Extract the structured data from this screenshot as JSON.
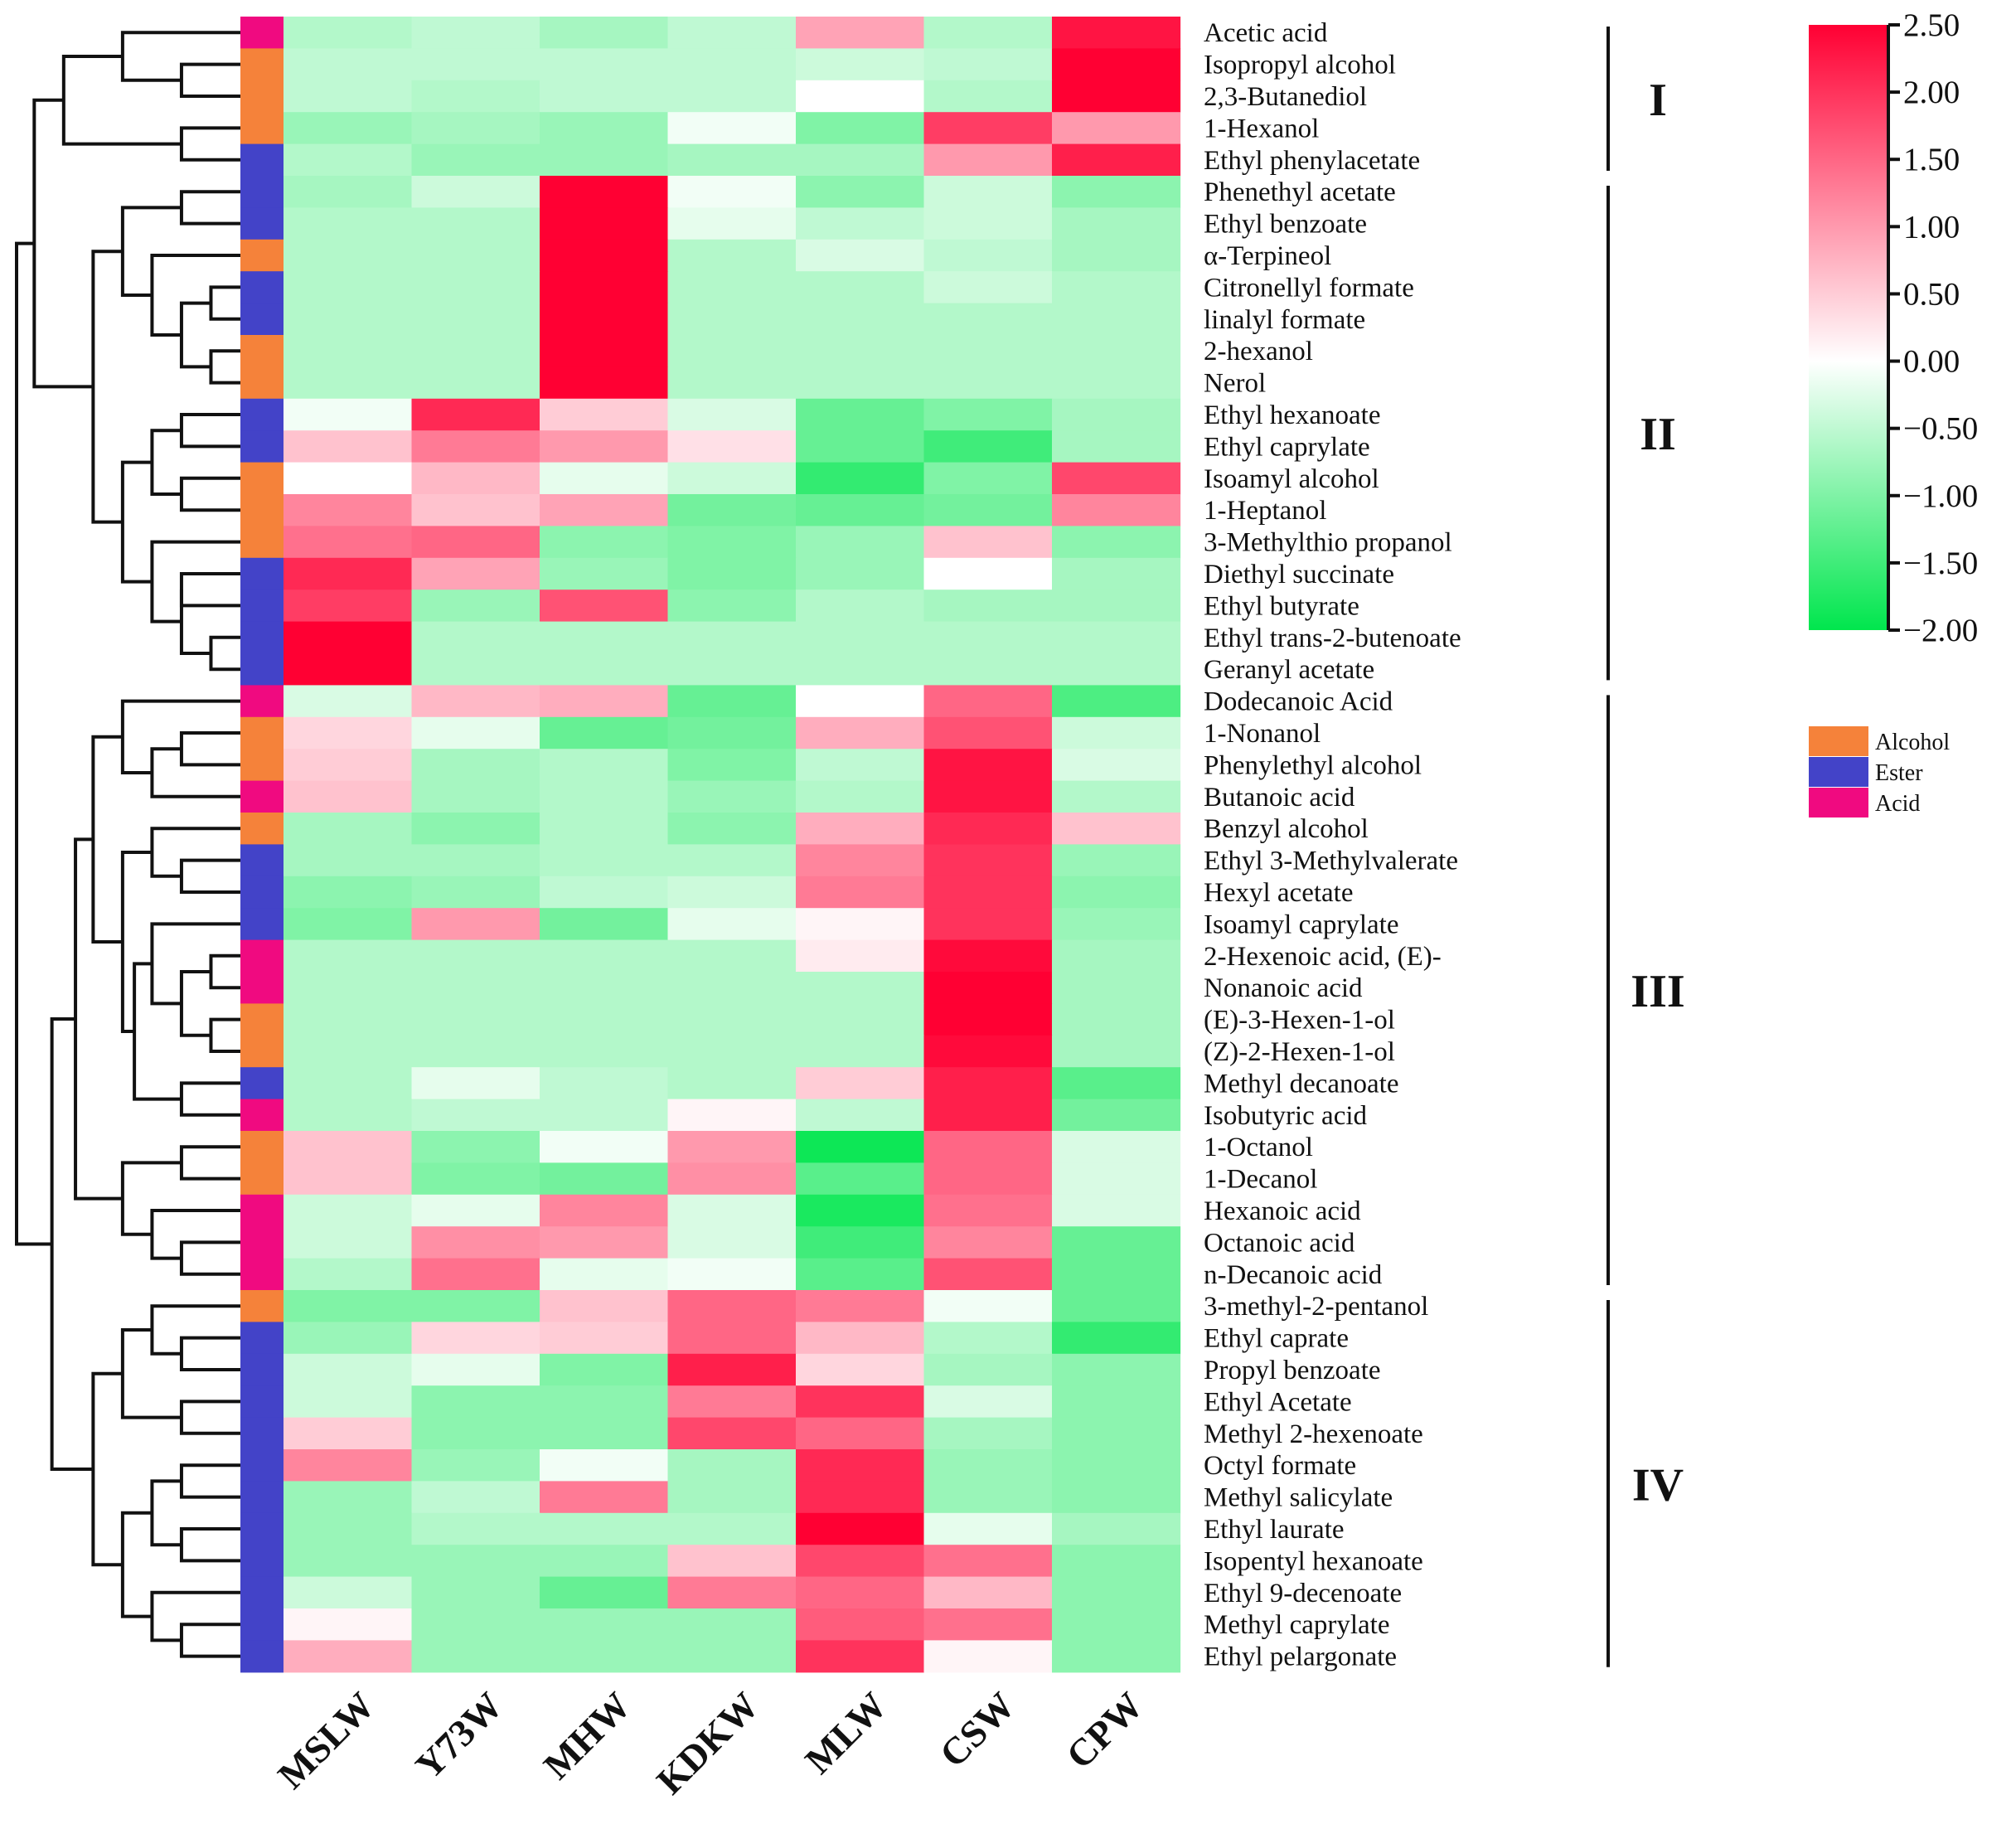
{
  "chart_data": {
    "type": "heatmap",
    "title": "",
    "columns": [
      "MSLW",
      "Y73W",
      "MHW",
      "KDKW",
      "MLW",
      "CSW",
      "CPW"
    ],
    "rows": [
      "Acetic acid",
      "Isopropyl alcohol",
      "2,3-Butanediol",
      "1-Hexanol",
      "Ethyl phenylacetate",
      "Phenethyl acetate",
      "Ethyl benzoate",
      "α-Terpineol",
      "Citronellyl formate",
      "linalyl formate",
      "2-hexanol",
      "Nerol",
      "Ethyl hexanoate",
      "Ethyl caprylate",
      "Isoamyl alcohol",
      "1-Heptanol",
      "3-Methylthio propanol",
      "Diethyl succinate",
      "Ethyl butyrate",
      "Ethyl trans-2-butenoate",
      "Geranyl acetate",
      "Dodecanoic Acid",
      "1-Nonanol",
      "Phenylethyl alcohol",
      "Butanoic acid",
      "Benzyl alcohol",
      "Ethyl 3-Methylvalerate",
      "Hexyl acetate",
      "Isoamyl caprylate",
      "2-Hexenoic acid, (E)-",
      "Nonanoic acid",
      "(E)-3-Hexen-1-ol",
      "(Z)-2-Hexen-1-ol",
      "Methyl decanoate",
      "Isobutyric acid",
      "1-Octanol",
      "1-Decanol",
      "Hexanoic acid",
      "Octanoic acid",
      "n-Decanoic acid",
      "3-methyl-2-pentanol",
      "Ethyl caprate",
      "Propyl benzoate",
      "Ethyl Acetate",
      "Methyl 2-hexenoate",
      "Octyl formate",
      "Methyl salicylate",
      "Ethyl laurate",
      "Isopentyl hexanoate",
      "Ethyl 9-decenoate",
      "Methyl caprylate",
      "Ethyl pelargonate"
    ],
    "row_class": [
      "Acid",
      "Alcohol",
      "Alcohol",
      "Alcohol",
      "Ester",
      "Ester",
      "Ester",
      "Alcohol",
      "Ester",
      "Ester",
      "Alcohol",
      "Alcohol",
      "Ester",
      "Ester",
      "Alcohol",
      "Alcohol",
      "Alcohol",
      "Ester",
      "Ester",
      "Ester",
      "Ester",
      "Acid",
      "Alcohol",
      "Alcohol",
      "Acid",
      "Alcohol",
      "Ester",
      "Ester",
      "Ester",
      "Acid",
      "Acid",
      "Alcohol",
      "Alcohol",
      "Ester",
      "Acid",
      "Alcohol",
      "Alcohol",
      "Acid",
      "Acid",
      "Acid",
      "Alcohol",
      "Ester",
      "Ester",
      "Ester",
      "Ester",
      "Ester",
      "Ester",
      "Ester",
      "Ester",
      "Ester",
      "Ester",
      "Ester"
    ],
    "values": [
      [
        -0.6,
        -0.5,
        -0.7,
        -0.5,
        0.9,
        -0.6,
        2.3
      ],
      [
        -0.5,
        -0.5,
        -0.5,
        -0.5,
        -0.4,
        -0.5,
        2.5
      ],
      [
        -0.5,
        -0.6,
        -0.5,
        -0.5,
        0.0,
        -0.6,
        2.5
      ],
      [
        -0.8,
        -0.7,
        -0.8,
        -0.1,
        -1.0,
        1.9,
        1.0
      ],
      [
        -0.6,
        -0.8,
        -0.8,
        -0.7,
        -0.7,
        1.0,
        2.2
      ],
      [
        -0.7,
        -0.4,
        2.5,
        -0.1,
        -0.9,
        -0.4,
        -0.9
      ],
      [
        -0.6,
        -0.6,
        2.5,
        -0.2,
        -0.5,
        -0.4,
        -0.7
      ],
      [
        -0.6,
        -0.6,
        2.5,
        -0.6,
        -0.3,
        -0.5,
        -0.7
      ],
      [
        -0.6,
        -0.6,
        2.5,
        -0.6,
        -0.6,
        -0.4,
        -0.6
      ],
      [
        -0.6,
        -0.6,
        2.5,
        -0.6,
        -0.6,
        -0.6,
        -0.6
      ],
      [
        -0.6,
        -0.6,
        2.5,
        -0.6,
        -0.6,
        -0.6,
        -0.6
      ],
      [
        -0.6,
        -0.6,
        2.5,
        -0.6,
        -0.6,
        -0.6,
        -0.6
      ],
      [
        -0.1,
        2.1,
        0.5,
        -0.3,
        -1.2,
        -1.0,
        -0.7
      ],
      [
        0.6,
        1.3,
        1.0,
        0.3,
        -1.2,
        -1.5,
        -0.7
      ],
      [
        0.0,
        0.7,
        -0.2,
        -0.4,
        -1.6,
        -1.0,
        1.8
      ],
      [
        1.2,
        0.6,
        0.9,
        -1.1,
        -1.2,
        -1.1,
        1.2
      ],
      [
        1.4,
        1.5,
        -0.9,
        -1.0,
        -0.8,
        0.6,
        -0.9
      ],
      [
        2.1,
        0.9,
        -0.8,
        -1.0,
        -0.8,
        0.0,
        -0.7
      ],
      [
        1.9,
        -0.8,
        1.7,
        -0.9,
        -0.6,
        -0.7,
        -0.7
      ],
      [
        2.5,
        -0.6,
        -0.6,
        -0.6,
        -0.6,
        -0.6,
        -0.6
      ],
      [
        2.5,
        -0.6,
        -0.6,
        -0.6,
        -0.6,
        -0.6,
        -0.6
      ],
      [
        -0.3,
        0.7,
        0.8,
        -1.2,
        0.0,
        1.5,
        -1.4
      ],
      [
        0.4,
        -0.2,
        -1.2,
        -1.1,
        0.8,
        1.7,
        -0.4
      ],
      [
        0.5,
        -0.7,
        -0.6,
        -1.0,
        -0.5,
        2.3,
        -0.3
      ],
      [
        0.6,
        -0.7,
        -0.6,
        -0.8,
        -0.6,
        2.3,
        -0.6
      ],
      [
        -0.7,
        -0.9,
        -0.6,
        -0.9,
        0.8,
        2.1,
        0.6
      ],
      [
        -0.7,
        -0.7,
        -0.6,
        -0.6,
        1.2,
        2.0,
        -0.8
      ],
      [
        -0.9,
        -0.8,
        -0.5,
        -0.4,
        1.3,
        2.0,
        -0.9
      ],
      [
        -1.0,
        1.0,
        -1.1,
        -0.2,
        0.1,
        2.0,
        -0.8
      ],
      [
        -0.6,
        -0.6,
        -0.6,
        -0.6,
        0.2,
        2.4,
        -0.7
      ],
      [
        -0.6,
        -0.6,
        -0.6,
        -0.6,
        -0.6,
        2.5,
        -0.7
      ],
      [
        -0.6,
        -0.6,
        -0.6,
        -0.6,
        -0.6,
        2.5,
        -0.7
      ],
      [
        -0.6,
        -0.6,
        -0.6,
        -0.6,
        -0.6,
        2.4,
        -0.7
      ],
      [
        -0.6,
        -0.2,
        -0.5,
        -0.6,
        0.5,
        2.2,
        -1.3
      ],
      [
        -0.6,
        -0.5,
        -0.5,
        0.1,
        -0.5,
        2.2,
        -1.1
      ],
      [
        0.6,
        -0.9,
        -0.1,
        1.0,
        -1.9,
        1.5,
        -0.3
      ],
      [
        0.6,
        -1.0,
        -1.1,
        1.1,
        -1.3,
        1.5,
        -0.3
      ],
      [
        -0.4,
        -0.2,
        1.2,
        -0.3,
        -1.8,
        1.4,
        -0.3
      ],
      [
        -0.4,
        1.1,
        1.0,
        -0.3,
        -1.5,
        1.2,
        -1.2
      ],
      [
        -0.6,
        1.4,
        -0.2,
        -0.1,
        -1.3,
        1.7,
        -1.2
      ],
      [
        -1.0,
        -1.0,
        0.6,
        1.5,
        1.3,
        -0.1,
        -1.2
      ],
      [
        -0.8,
        0.4,
        0.5,
        1.5,
        0.7,
        -0.6,
        -1.6
      ],
      [
        -0.4,
        -0.2,
        -1.0,
        2.2,
        0.4,
        -0.7,
        -0.9
      ],
      [
        -0.4,
        -0.9,
        -0.9,
        1.3,
        2.0,
        -0.3,
        -0.9
      ],
      [
        0.5,
        -0.9,
        -0.9,
        1.8,
        1.5,
        -0.7,
        -0.9
      ],
      [
        1.2,
        -0.8,
        -0.1,
        -0.7,
        2.1,
        -0.8,
        -0.9
      ],
      [
        -0.8,
        -0.5,
        1.3,
        -0.7,
        2.1,
        -0.8,
        -0.9
      ],
      [
        -0.8,
        -0.6,
        -0.6,
        -0.6,
        2.5,
        -0.2,
        -0.7
      ],
      [
        -0.8,
        -0.8,
        -0.8,
        0.6,
        1.8,
        1.4,
        -0.9
      ],
      [
        -0.4,
        -0.8,
        -1.2,
        1.3,
        1.5,
        0.7,
        -0.9
      ],
      [
        0.1,
        -0.8,
        -0.8,
        -0.8,
        1.6,
        1.4,
        -0.9
      ],
      [
        0.8,
        -0.8,
        -0.8,
        -0.8,
        2.0,
        0.1,
        -0.9
      ]
    ],
    "color_scale": {
      "min": -2.0,
      "max": 2.5,
      "low_color": "#00e64d",
      "mid_color": "#ffffff",
      "high_color": "#ff0033",
      "ticks": [
        "2.50",
        "2.00",
        "1.50",
        "1.00",
        "0.50",
        "0.00",
        "−0.50",
        "−1.00",
        "−1.50",
        "−2.00"
      ]
    },
    "class_legend": [
      {
        "name": "Alcohol",
        "color": "#f5823a"
      },
      {
        "name": "Ester",
        "color": "#4343c8"
      },
      {
        "name": "Acid",
        "color": "#f00a80"
      }
    ],
    "clusters": [
      {
        "label": "I",
        "first_row": 0,
        "last_row": 4
      },
      {
        "label": "II",
        "first_row": 5,
        "last_row": 20
      },
      {
        "label": "III",
        "first_row": 21,
        "last_row": 39
      },
      {
        "label": "IV",
        "first_row": 40,
        "last_row": 51
      }
    ],
    "dendrogram": {
      "leaf_order": "rows",
      "merges": [
        [
          1,
          2,
          1
        ],
        [
          -1,
          0,
          2
        ],
        [
          3,
          4,
          1
        ],
        [
          -2,
          -3,
          3
        ],
        [
          5,
          6,
          1
        ],
        [
          8,
          9,
          0.5
        ],
        [
          10,
          11,
          0.5
        ],
        [
          -6,
          -7,
          1
        ],
        [
          7,
          -8,
          1.5
        ],
        [
          -5,
          -9,
          2
        ],
        [
          12,
          13,
          1
        ],
        [
          14,
          15,
          1
        ],
        [
          -11,
          -12,
          1.5
        ],
        [
          17,
          18,
          1
        ],
        [
          19,
          20,
          0.5
        ],
        [
          -14,
          -15,
          1
        ],
        [
          16,
          -16,
          1.5
        ],
        [
          -13,
          -17,
          2
        ],
        [
          -10,
          -18,
          2.5
        ],
        [
          -4,
          -19,
          3.5
        ],
        [
          22,
          23,
          1
        ],
        [
          -21,
          24,
          1.5
        ],
        [
          21,
          -22,
          2
        ],
        [
          26,
          27,
          1
        ],
        [
          25,
          -24,
          1.5
        ],
        [
          29,
          30,
          0.5
        ],
        [
          31,
          32,
          0.5
        ],
        [
          -26,
          -27,
          1
        ],
        [
          28,
          -28,
          1.5
        ],
        [
          33,
          34,
          1
        ],
        [
          -29,
          -30,
          1.8
        ],
        [
          -25,
          -31,
          2
        ],
        [
          -23,
          -32,
          2.5
        ],
        [
          35,
          36,
          1
        ],
        [
          38,
          39,
          1
        ],
        [
          37,
          -35,
          1.5
        ],
        [
          -34,
          -36,
          2
        ],
        [
          -33,
          -37,
          2.8
        ],
        [
          41,
          42,
          1
        ],
        [
          40,
          -39,
          1.5
        ],
        [
          43,
          44,
          1
        ],
        [
          -40,
          -41,
          2
        ],
        [
          45,
          46,
          1
        ],
        [
          47,
          48,
          1
        ],
        [
          -43,
          -44,
          1.5
        ],
        [
          50,
          51,
          1
        ],
        [
          49,
          -46,
          1.5
        ],
        [
          -45,
          -47,
          2
        ],
        [
          -42,
          -48,
          2.5
        ],
        [
          -38,
          -49,
          3.2
        ],
        [
          -20,
          -50,
          3.8
        ]
      ]
    }
  }
}
